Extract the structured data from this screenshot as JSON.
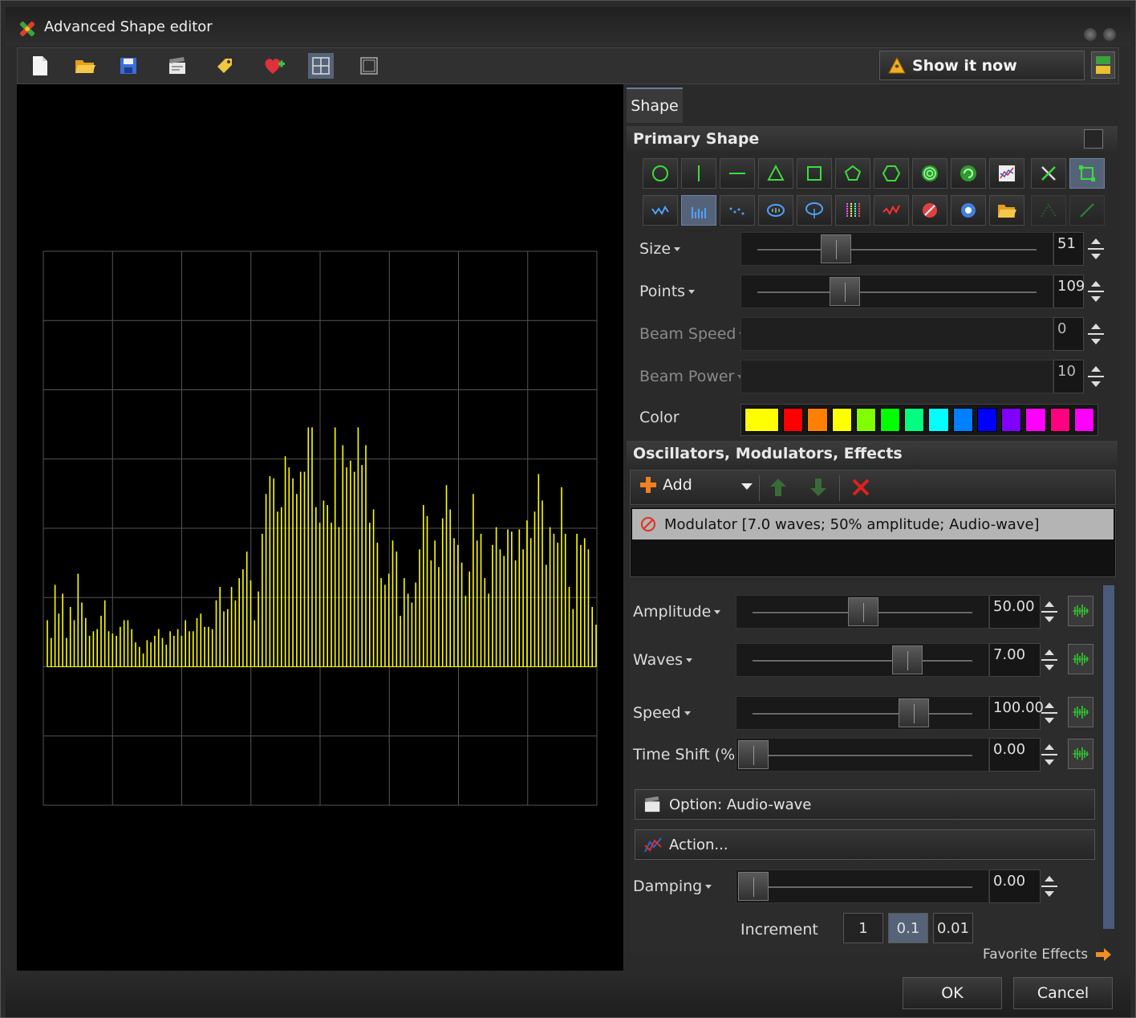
{
  "window": {
    "title": "Advanced Shape editor"
  },
  "toolbar": {
    "icons": [
      "new-file-icon",
      "open-folder-icon",
      "save-icon",
      "clapperboard-icon",
      "tag-icon",
      "heart-add-icon",
      "grid-view-icon",
      "single-view-icon"
    ],
    "show_now_label": "Show it now"
  },
  "panel": {
    "tab_label": "Shape",
    "primary_shape": {
      "heading": "Primary Shape",
      "shape_buttons_row1": [
        "circle-icon",
        "vertical-line-icon",
        "horizontal-line-icon",
        "triangle-icon",
        "square-icon",
        "pentagon-icon",
        "hexagon-icon",
        "concentric-circles-icon",
        "spiral-icon",
        "graph-icon",
        "cross-icon",
        "frame-icon"
      ],
      "shape_buttons_row2": [
        "wave-icon",
        "bars-icon",
        "dots-icon",
        "ellipse-audio-icon",
        "ellipse-audio2-icon",
        "color-bars-icon",
        "red-wave-icon",
        "red-ball-icon",
        "blue-ball-icon",
        "folder-icon",
        "peak-icon",
        "diagonal-line-icon"
      ],
      "selected_row2_index": 1
    },
    "properties": {
      "size": {
        "label": "Size",
        "value": "51",
        "level": 0.28
      },
      "points": {
        "label": "Points",
        "value": "109",
        "level": 0.31
      },
      "beam_speed": {
        "label": "Beam Speed",
        "value": "0"
      },
      "beam_power": {
        "label": "Beam Power",
        "value": "10"
      },
      "color": {
        "label": "Color",
        "swatches": [
          "#ffff00",
          "#ff0000",
          "#ff8000",
          "#ffff00",
          "#80ff00",
          "#00ff00",
          "#00ff80",
          "#00ffff",
          "#0080ff",
          "#0000ff",
          "#8000ff",
          "#ff00ff",
          "#ff0080",
          "#ff00ff"
        ]
      }
    },
    "oscillators": {
      "heading": "Oscillators, Modulators, Effects",
      "add_label": "Add",
      "items": [
        "Modulator [7.0 waves; 50% amplitude; Audio-wave]"
      ]
    },
    "params": {
      "amplitude": {
        "label": "Amplitude",
        "value": "50.00",
        "level": 0.5
      },
      "waves": {
        "label": "Waves",
        "value": "7.00",
        "level": 0.7
      },
      "speed": {
        "label": "Speed",
        "value": "100.00",
        "level": 0.73
      },
      "time_shift": {
        "label": "Time Shift (%)",
        "value": "0.00",
        "level": 0.0
      },
      "option_label": "Option: Audio-wave",
      "action_label": "Action...",
      "damping": {
        "label": "Damping",
        "value": "0.00",
        "level": 0.0
      },
      "increment": {
        "label": "Increment",
        "options": [
          "1",
          "0.1",
          "0.01"
        ],
        "selected": 1
      }
    },
    "favorite_label": "Favorite Effects"
  },
  "buttons": {
    "ok": "OK",
    "cancel": "Cancel"
  },
  "preview": {
    "grid": {
      "cols": 8,
      "rows": 8
    },
    "bar_color": "#ffff00",
    "bar_heights": [
      0.21,
      0.13,
      0.37,
      0.24,
      0.33,
      0.13,
      0.27,
      0.21,
      0.42,
      0.29,
      0.22,
      0.14,
      0.16,
      0.17,
      0.23,
      0.3,
      0.16,
      0.15,
      0.14,
      0.18,
      0.21,
      0.21,
      0.17,
      0.11,
      0.09,
      0.06,
      0.12,
      0.11,
      0.14,
      0.17,
      0.13,
      0.1,
      0.16,
      0.14,
      0.17,
      0.14,
      0.21,
      0.16,
      0.16,
      0.22,
      0.24,
      0.18,
      0.18,
      0.17,
      0.3,
      0.36,
      0.25,
      0.26,
      0.36,
      0.3,
      0.4,
      0.44,
      0.52,
      0.39,
      0.21,
      0.34,
      0.6,
      0.78,
      0.86,
      0.85,
      0.7,
      0.72,
      0.95,
      0.9,
      0.85,
      0.78,
      0.88,
      0.88,
      1.08,
      1.08,
      0.72,
      0.65,
      0.75,
      0.73,
      0.65,
      1.08,
      0.63,
      1.0,
      0.9,
      0.93,
      0.88,
      1.08,
      0.91,
      1.0,
      0.65,
      0.71,
      0.56,
      0.4,
      0.37,
      0.42,
      0.57,
      0.52,
      0.23,
      0.4,
      0.33,
      0.29,
      0.38,
      0.53,
      0.73,
      0.68,
      0.48,
      0.57,
      0.45,
      0.67,
      0.82,
      0.71,
      0.58,
      0.55,
      0.47,
      0.32,
      0.43,
      0.78,
      0.57,
      0.6,
      0.4,
      0.33,
      0.55,
      0.63,
      0.53,
      0.5,
      0.62,
      0.61,
      0.48,
      0.62,
      0.53,
      0.66,
      0.58,
      0.7,
      0.87,
      0.75,
      0.46,
      0.63,
      0.6,
      0.56,
      0.81,
      0.6,
      0.36,
      0.26,
      0.6,
      0.55,
      0.58,
      0.53,
      0.27,
      0.19
    ]
  }
}
